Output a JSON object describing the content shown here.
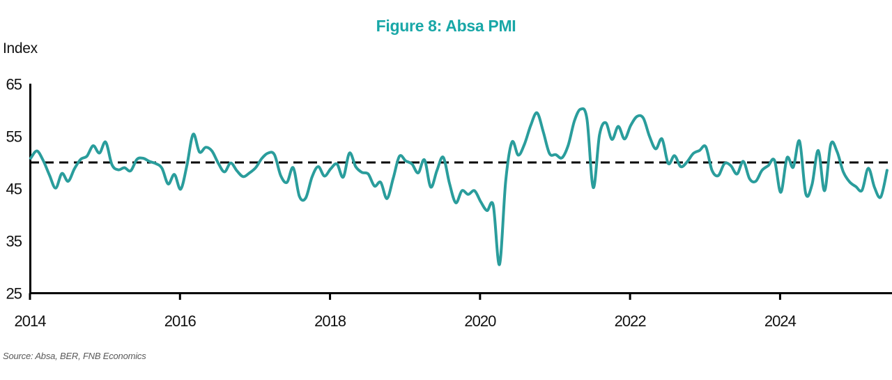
{
  "chart_data": {
    "type": "line",
    "title": "Figure 8: Absa PMI",
    "ylabel": "Index",
    "xlabel": "",
    "ylim": [
      25,
      65
    ],
    "yticks": [
      65,
      55,
      45,
      35,
      25
    ],
    "xticks": [
      2014,
      2016,
      2018,
      2020,
      2022,
      2024
    ],
    "reference_line": 50,
    "grid": false,
    "legend_position": "none",
    "frequency": "monthly",
    "start": "2014-01",
    "end": "2025-06",
    "source": "Source: Absa, BER, FNB Economics",
    "series": [
      {
        "name": "Absa PMI",
        "values": [
          50.8,
          52.2,
          50.4,
          47.6,
          45.1,
          47.9,
          46.4,
          48.8,
          50.6,
          51.2,
          53.2,
          51.8,
          53.9,
          49.6,
          48.6,
          49.0,
          48.4,
          50.6,
          50.8,
          50.2,
          49.8,
          48.9,
          45.9,
          47.7,
          44.9,
          49.5,
          55.4,
          52.0,
          52.9,
          52.2,
          49.9,
          48.2,
          49.9,
          48.4,
          47.3,
          48.0,
          49.0,
          50.8,
          51.8,
          51.5,
          47.5,
          46.2,
          49.0,
          43.5,
          43.2,
          47.2,
          49.2,
          47.4,
          48.8,
          49.7,
          47.2,
          51.8,
          49.2,
          48.1,
          47.8,
          45.5,
          46.2,
          43.1,
          47.0,
          51.2,
          50.3,
          49.7,
          48.0,
          50.5,
          45.3,
          48.5,
          51.0,
          46.0,
          42.3,
          44.6,
          43.9,
          44.6,
          42.5,
          40.8,
          41.8,
          30.5,
          46.5,
          53.9,
          51.4,
          53.5,
          57.1,
          59.5,
          55.9,
          51.7,
          51.5,
          50.9,
          53.3,
          58.0,
          60.2,
          58.3,
          45.2,
          55.3,
          57.6,
          54.4,
          56.9,
          54.5,
          57.1,
          58.8,
          58.5,
          55.0,
          52.6,
          54.5,
          49.8,
          51.3,
          49.2,
          50.1,
          51.7,
          52.3,
          53.0,
          48.5,
          47.5,
          49.8,
          49.4,
          47.8,
          50.2,
          46.9,
          46.4,
          48.5,
          49.4,
          50.4,
          44.3,
          50.9,
          49.1,
          54.1,
          44.0,
          45.8,
          52.3,
          44.6,
          53.5,
          52.1,
          48.2,
          46.3,
          45.4,
          44.7,
          48.9,
          45.2,
          43.4,
          48.5
        ]
      }
    ],
    "colors": {
      "series_line": "#2A9D9C",
      "title_text": "#18A7A7",
      "axis": "#000000",
      "reference_line": "#000000",
      "source_text": "#595959"
    }
  }
}
